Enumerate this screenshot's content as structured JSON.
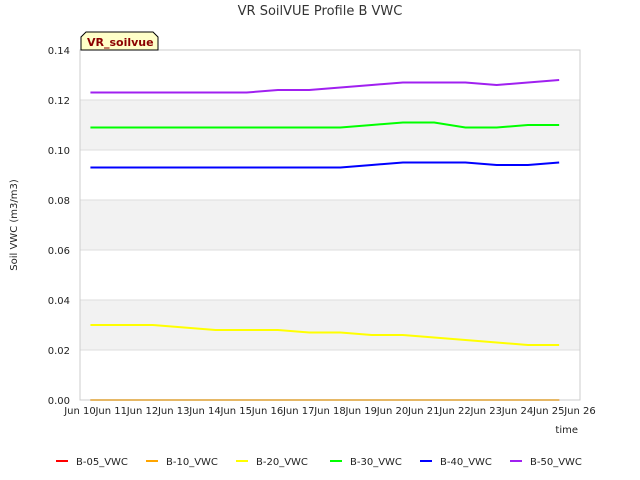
{
  "chart_data": {
    "type": "line",
    "title": "VR SoilVUE Profile B VWC",
    "ylabel": "Soil VWC (m3/m3)",
    "xlabel": "time",
    "badge": "VR_soilvue",
    "ylim": [
      0,
      0.14
    ],
    "yticks": [
      "0.00",
      "0.02",
      "0.04",
      "0.06",
      "0.08",
      "0.10",
      "0.12",
      "0.14"
    ],
    "xlim": [
      "2024-06-10",
      "2024-06-26"
    ],
    "xticks": [
      "Jun 11",
      "Jun 12",
      "Jun 13",
      "Jun 14",
      "Jun 15",
      "Jun 16",
      "Jun 17",
      "Jun 18",
      "Jun 19",
      "Jun 20",
      "Jun 21",
      "Jun 22",
      "Jun 23",
      "Jun 24",
      "Jun 25",
      "Jun 26"
    ],
    "xtick_first": "Jun 10",
    "grid": true,
    "legend_position": "bottom",
    "x": [
      "2024-06-10",
      "2024-06-11",
      "2024-06-12",
      "2024-06-13",
      "2024-06-14",
      "2024-06-15",
      "2024-06-16",
      "2024-06-17",
      "2024-06-18",
      "2024-06-19",
      "2024-06-20",
      "2024-06-21",
      "2024-06-22",
      "2024-06-23",
      "2024-06-24",
      "2024-06-25"
    ],
    "series": [
      {
        "name": "B-05_VWC",
        "color": "#ff0000",
        "values": [
          0,
          0,
          0,
          0,
          0,
          0,
          0,
          0,
          0,
          0,
          0,
          0,
          0,
          0,
          0,
          0
        ]
      },
      {
        "name": "B-10_VWC",
        "color": "#ffa500",
        "values": [
          0,
          0,
          0,
          0,
          0,
          0,
          0,
          0,
          0,
          0,
          0,
          0,
          0,
          0,
          0,
          0
        ]
      },
      {
        "name": "B-20_VWC",
        "color": "#ffff00",
        "values": [
          0.03,
          0.03,
          0.03,
          0.029,
          0.028,
          0.028,
          0.028,
          0.027,
          0.027,
          0.026,
          0.026,
          0.025,
          0.024,
          0.023,
          0.022,
          0.022
        ]
      },
      {
        "name": "B-30_VWC",
        "color": "#00ff00",
        "values": [
          0.109,
          0.109,
          0.109,
          0.109,
          0.109,
          0.109,
          0.109,
          0.109,
          0.109,
          0.11,
          0.111,
          0.111,
          0.109,
          0.109,
          0.11,
          0.11
        ]
      },
      {
        "name": "B-40_VWC",
        "color": "#0000ff",
        "values": [
          0.093,
          0.093,
          0.093,
          0.093,
          0.093,
          0.093,
          0.093,
          0.093,
          0.093,
          0.094,
          0.095,
          0.095,
          0.095,
          0.094,
          0.094,
          0.095
        ]
      },
      {
        "name": "B-50_VWC",
        "color": "#a020f0",
        "values": [
          0.123,
          0.123,
          0.123,
          0.123,
          0.123,
          0.123,
          0.124,
          0.124,
          0.125,
          0.126,
          0.127,
          0.127,
          0.127,
          0.126,
          0.127,
          0.128
        ]
      }
    ]
  }
}
